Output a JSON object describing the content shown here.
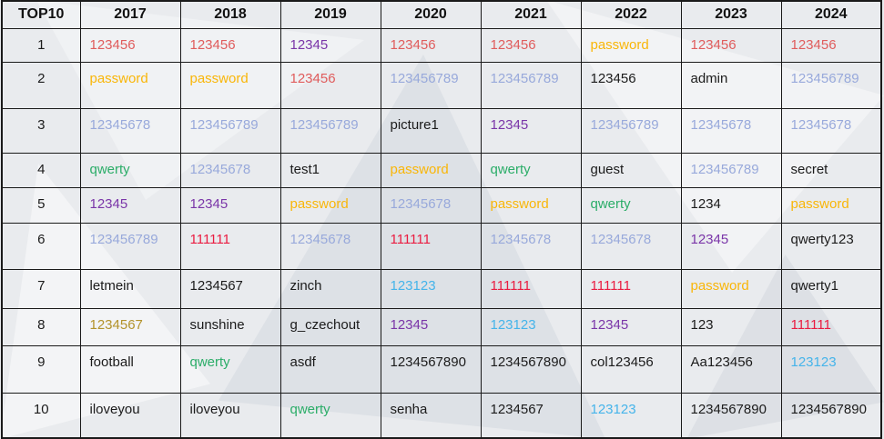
{
  "colors": {
    "red": "#e05c5c",
    "crimson": "#ea1c41",
    "yellow": "#f9b608",
    "gold": "#b3932c",
    "green": "#2bad68",
    "purple": "#7a35a8",
    "blue": "#98a9db",
    "cyan": "#45b4ea",
    "black": "#1b1b1b"
  },
  "table": {
    "columns": [
      "TOP10",
      "2017",
      "2018",
      "2019",
      "2020",
      "2021",
      "2022",
      "2023",
      "2024"
    ],
    "rows": [
      {
        "rank": "1",
        "cells": [
          {
            "text": "123456",
            "color": "red"
          },
          {
            "text": "123456",
            "color": "red"
          },
          {
            "text": "12345",
            "color": "purple"
          },
          {
            "text": "123456",
            "color": "red"
          },
          {
            "text": "123456",
            "color": "red"
          },
          {
            "text": "password",
            "color": "yellow"
          },
          {
            "text": "123456",
            "color": "red"
          },
          {
            "text": "123456",
            "color": "red"
          }
        ]
      },
      {
        "rank": "2",
        "cells": [
          {
            "text": "password",
            "color": "yellow"
          },
          {
            "text": "password",
            "color": "yellow"
          },
          {
            "text": "123456",
            "color": "red"
          },
          {
            "text": "123456789",
            "color": "blue"
          },
          {
            "text": "123456789",
            "color": "blue"
          },
          {
            "text": "123456",
            "color": "black"
          },
          {
            "text": "admin",
            "color": "black"
          },
          {
            "text": "123456789",
            "color": "blue"
          }
        ]
      },
      {
        "rank": "3",
        "cells": [
          {
            "text": "12345678",
            "color": "blue"
          },
          {
            "text": "123456789",
            "color": "blue"
          },
          {
            "text": "123456789",
            "color": "blue"
          },
          {
            "text": "picture1",
            "color": "black"
          },
          {
            "text": "12345",
            "color": "purple"
          },
          {
            "text": "123456789",
            "color": "blue"
          },
          {
            "text": "12345678",
            "color": "blue"
          },
          {
            "text": "12345678",
            "color": "blue"
          }
        ]
      },
      {
        "rank": "4",
        "cells": [
          {
            "text": "qwerty",
            "color": "green"
          },
          {
            "text": "12345678",
            "color": "blue"
          },
          {
            "text": "test1",
            "color": "black"
          },
          {
            "text": "password",
            "color": "yellow"
          },
          {
            "text": "qwerty",
            "color": "green"
          },
          {
            "text": "guest",
            "color": "black"
          },
          {
            "text": "123456789",
            "color": "blue"
          },
          {
            "text": "secret",
            "color": "black"
          }
        ]
      },
      {
        "rank": "5",
        "cells": [
          {
            "text": "12345",
            "color": "purple"
          },
          {
            "text": "12345",
            "color": "purple"
          },
          {
            "text": "password",
            "color": "yellow"
          },
          {
            "text": "12345678",
            "color": "blue"
          },
          {
            "text": "password",
            "color": "yellow"
          },
          {
            "text": "qwerty",
            "color": "green"
          },
          {
            "text": "1234",
            "color": "black"
          },
          {
            "text": "password",
            "color": "yellow"
          }
        ]
      },
      {
        "rank": "6",
        "cells": [
          {
            "text": "123456789",
            "color": "blue"
          },
          {
            "text": "111111",
            "color": "crimson"
          },
          {
            "text": "12345678",
            "color": "blue"
          },
          {
            "text": "111111",
            "color": "crimson"
          },
          {
            "text": "12345678",
            "color": "blue"
          },
          {
            "text": "12345678",
            "color": "blue"
          },
          {
            "text": "12345",
            "color": "purple"
          },
          {
            "text": "qwerty123",
            "color": "black"
          }
        ]
      },
      {
        "rank": "7",
        "cells": [
          {
            "text": "letmein",
            "color": "black"
          },
          {
            "text": "1234567",
            "color": "black"
          },
          {
            "text": "zinch",
            "color": "black"
          },
          {
            "text": "123123",
            "color": "cyan"
          },
          {
            "text": "111111",
            "color": "crimson"
          },
          {
            "text": "111111",
            "color": "crimson"
          },
          {
            "text": "password",
            "color": "yellow"
          },
          {
            "text": "qwerty1",
            "color": "black"
          }
        ]
      },
      {
        "rank": "8",
        "cells": [
          {
            "text": "1234567",
            "color": "gold"
          },
          {
            "text": "sunshine",
            "color": "black"
          },
          {
            "text": "g_czechout",
            "color": "black"
          },
          {
            "text": "12345",
            "color": "purple"
          },
          {
            "text": "123123",
            "color": "cyan"
          },
          {
            "text": "12345",
            "color": "purple"
          },
          {
            "text": "123",
            "color": "black"
          },
          {
            "text": "111111",
            "color": "crimson"
          }
        ]
      },
      {
        "rank": "9",
        "cells": [
          {
            "text": "football",
            "color": "black"
          },
          {
            "text": "qwerty",
            "color": "green"
          },
          {
            "text": "asdf",
            "color": "black"
          },
          {
            "text": "1234567890",
            "color": "black"
          },
          {
            "text": "1234567890",
            "color": "black"
          },
          {
            "text": "col123456",
            "color": "black"
          },
          {
            "text": "Aa123456",
            "color": "black"
          },
          {
            "text": "123123",
            "color": "cyan"
          }
        ]
      },
      {
        "rank": "10",
        "cells": [
          {
            "text": "iloveyou",
            "color": "black"
          },
          {
            "text": "iloveyou",
            "color": "black"
          },
          {
            "text": "qwerty",
            "color": "green"
          },
          {
            "text": "senha",
            "color": "black"
          },
          {
            "text": "1234567",
            "color": "black"
          },
          {
            "text": "123123",
            "color": "cyan"
          },
          {
            "text": "1234567890",
            "color": "black"
          },
          {
            "text": "1234567890",
            "color": "black"
          }
        ]
      }
    ]
  }
}
